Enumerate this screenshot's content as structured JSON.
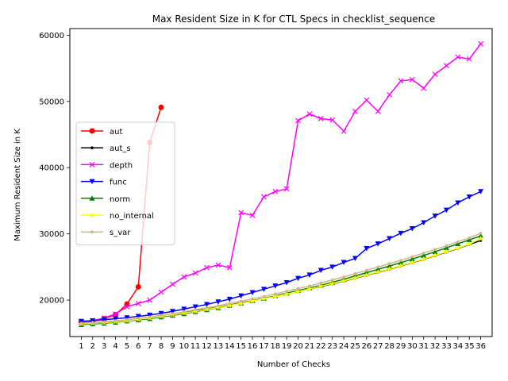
{
  "chart_data": {
    "type": "line",
    "title": "Max Resident Size in K for CTL Specs in checklist_sequence",
    "xlabel": "Number of Checks",
    "ylabel": "Maximum Resident Size in K",
    "x": [
      1,
      2,
      3,
      4,
      5,
      6,
      7,
      8,
      9,
      10,
      11,
      12,
      13,
      14,
      15,
      16,
      17,
      18,
      19,
      20,
      21,
      22,
      23,
      24,
      25,
      26,
      27,
      28,
      29,
      30,
      31,
      32,
      33,
      34,
      35,
      36
    ],
    "xticks": [
      "1",
      "2",
      "3",
      "4",
      "5",
      "6",
      "7",
      "8",
      "9",
      "10",
      "11",
      "12",
      "13",
      "14",
      "15",
      "16",
      "17",
      "18",
      "19",
      "20",
      "21",
      "22",
      "23",
      "24",
      "25",
      "26",
      "27",
      "28",
      "29",
      "30",
      "31",
      "32",
      "33",
      "34",
      "35",
      "36"
    ],
    "yticks": [
      20000,
      30000,
      40000,
      50000,
      60000
    ],
    "ytick_labels": [
      "20000",
      "30000",
      "40000",
      "50000",
      "60000"
    ],
    "ylim": [
      14500,
      61000
    ],
    "xlim": [
      0,
      37
    ],
    "grid": false,
    "legend_position": "center-left",
    "series": [
      {
        "name": "aut",
        "color": "#ff0000",
        "marker": "circle",
        "values": [
          16700,
          16800,
          17200,
          17800,
          19400,
          22000,
          43800,
          49100,
          null,
          null,
          null,
          null,
          null,
          null,
          null,
          null,
          null,
          null,
          null,
          null,
          null,
          null,
          null,
          null,
          null,
          null,
          null,
          null,
          null,
          null,
          null,
          null,
          null,
          null,
          null,
          null
        ]
      },
      {
        "name": "aut_s",
        "color": "#000000",
        "marker": "point",
        "values": [
          16500,
          16600,
          16700,
          16850,
          17000,
          17200,
          17400,
          17650,
          17900,
          18150,
          18400,
          18650,
          18950,
          19250,
          19600,
          19900,
          20250,
          20600,
          20950,
          21300,
          21700,
          22050,
          22450,
          22850,
          23300,
          23750,
          24200,
          24650,
          25150,
          25650,
          26150,
          26700,
          27250,
          27800,
          28400,
          29000
        ]
      },
      {
        "name": "depth",
        "color": "#ff00ff",
        "marker": "x",
        "values": [
          16700,
          16900,
          17300,
          17900,
          19000,
          19500,
          20000,
          21200,
          22400,
          23500,
          24100,
          24900,
          25300,
          24900,
          33200,
          32800,
          35600,
          36400,
          36800,
          47100,
          48100,
          47400,
          47200,
          45500,
          48500,
          50200,
          48500,
          51000,
          53100,
          53300,
          52000,
          54100,
          55400,
          56700,
          56400,
          58700
        ]
      },
      {
        "name": "func",
        "color": "#0000ff",
        "marker": "triangle-down",
        "values": [
          16800,
          16900,
          17050,
          17200,
          17350,
          17550,
          17750,
          18000,
          18300,
          18650,
          19000,
          19350,
          19750,
          20150,
          20650,
          21150,
          21650,
          22150,
          22650,
          23300,
          23800,
          24500,
          25000,
          25700,
          26300,
          27800,
          28500,
          29300,
          30100,
          30800,
          31700,
          32700,
          33600,
          34700,
          35600,
          36400
        ]
      },
      {
        "name": "norm",
        "color": "#008000",
        "marker": "triangle-up",
        "values": [
          16300,
          16400,
          16500,
          16650,
          16850,
          17000,
          17200,
          17450,
          17700,
          17950,
          18250,
          18550,
          18850,
          19200,
          19550,
          19900,
          20250,
          20650,
          21050,
          21450,
          21850,
          22250,
          22700,
          23150,
          23650,
          24150,
          24650,
          25150,
          25650,
          26200,
          26750,
          27300,
          27900,
          28500,
          29100,
          29700
        ]
      },
      {
        "name": "no_internal",
        "color": "#ffff00",
        "marker": "star",
        "values": [
          16400,
          16500,
          16600,
          16750,
          16900,
          17100,
          17300,
          17550,
          17800,
          18050,
          18300,
          18600,
          18900,
          19200,
          19500,
          19850,
          20200,
          20550,
          20900,
          21300,
          21700,
          22100,
          22500,
          22900,
          23350,
          23800,
          24250,
          24700,
          25200,
          25700,
          26200,
          26750,
          27300,
          27850,
          28450,
          29300
        ]
      },
      {
        "name": "s_var",
        "color": "#d2b48c",
        "marker": "point",
        "values": [
          16500,
          16600,
          16700,
          16850,
          17050,
          17250,
          17450,
          17700,
          17950,
          18250,
          18550,
          18850,
          19150,
          19500,
          19850,
          20200,
          20550,
          20950,
          21350,
          21750,
          22150,
          22600,
          23050,
          23500,
          24000,
          24500,
          25000,
          25500,
          26000,
          26550,
          27100,
          27650,
          28200,
          28800,
          29400,
          30100
        ]
      }
    ]
  }
}
